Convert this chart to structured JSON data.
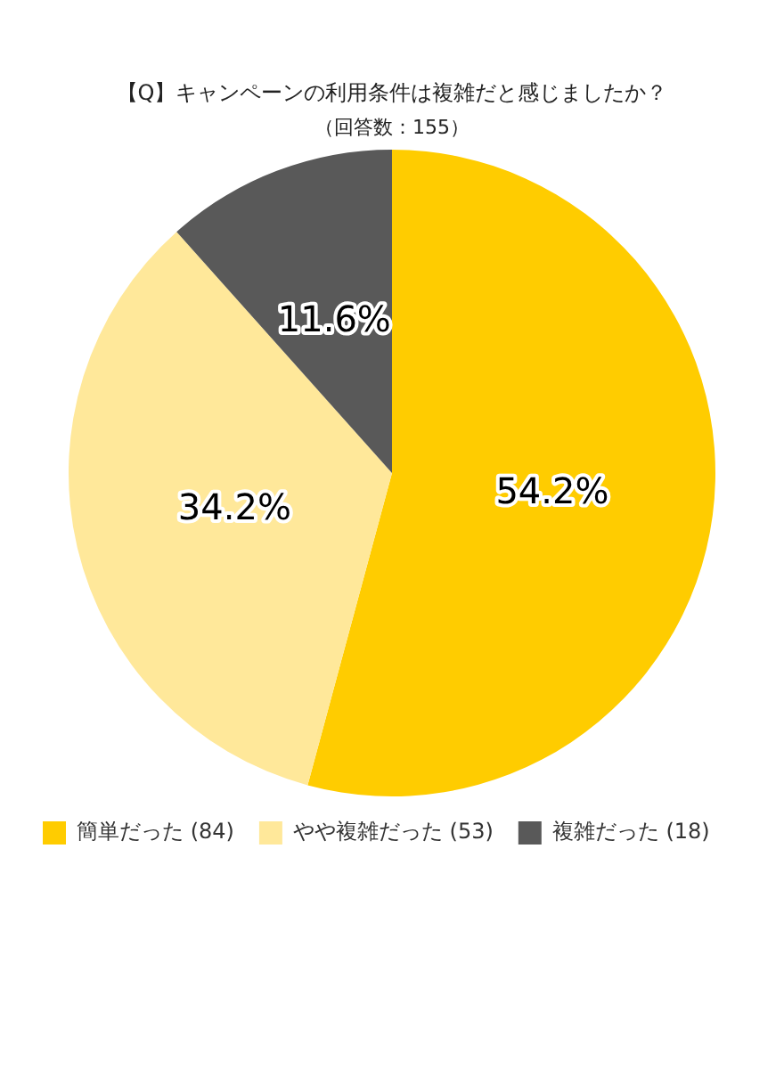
{
  "chart_data": {
    "type": "pie",
    "title": "【Q】キャンペーンの利用条件は複雑だと感じましたか？",
    "subtitle": "（回答数：155）",
    "categories": [
      "簡単だった (84)",
      "やや複雑だった (53)",
      "複雑だった (18)"
    ],
    "values": [
      54.2,
      34.2,
      11.6
    ],
    "colors": [
      "#ffcc00",
      "#ffe89a",
      "#595959"
    ],
    "value_labels": [
      "54.2%",
      "34.2%",
      "11.6%"
    ],
    "legend": "bottom"
  }
}
